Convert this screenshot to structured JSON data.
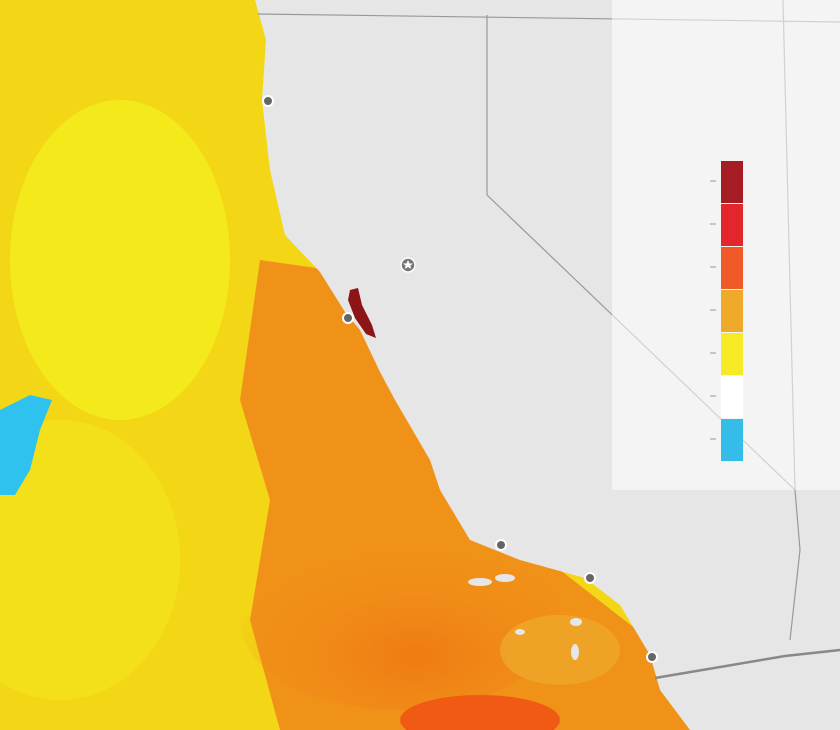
{
  "legend": {
    "colors": [
      "#a51c24",
      "#e3262b",
      "#f05a28",
      "#eea82a",
      "#f6e925",
      "#ffffff",
      "#34bde9"
    ]
  }
}
